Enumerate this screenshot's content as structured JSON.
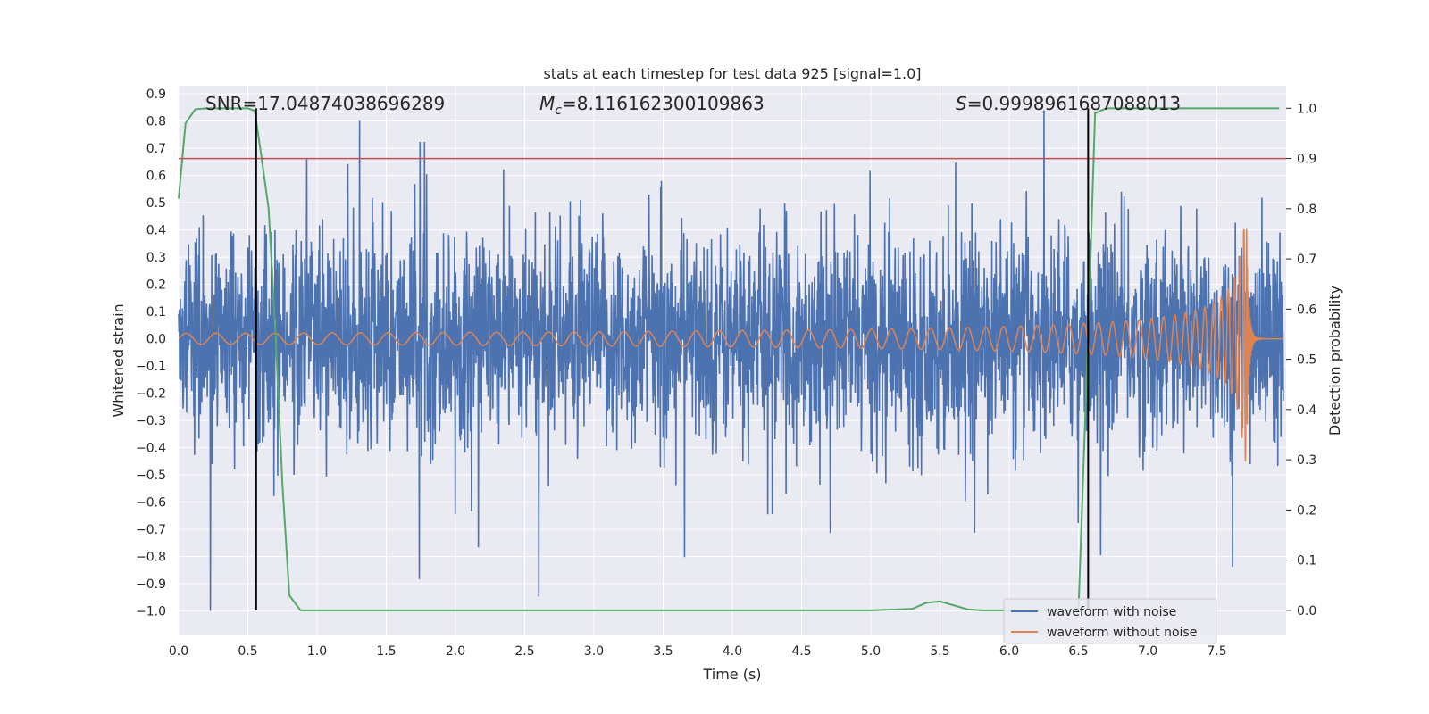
{
  "chart_data": {
    "type": "line",
    "title": "stats at each timestep for test data 925 [signal=1.0]",
    "xlabel": "Time (s)",
    "ylabel": "Whitened strain",
    "y2label": "Detection probability",
    "xlim": [
      0.0,
      8.0
    ],
    "ylim": [
      -1.09,
      0.93
    ],
    "y2lim": [
      -0.05,
      1.045
    ],
    "xticks": [
      "0.0",
      "0.5",
      "1.0",
      "1.5",
      "2.0",
      "2.5",
      "3.0",
      "3.5",
      "4.0",
      "4.5",
      "5.0",
      "5.5",
      "6.0",
      "6.5",
      "7.0",
      "7.5"
    ],
    "yticks": [
      "0.9",
      "0.8",
      "0.7",
      "0.6",
      "0.5",
      "0.4",
      "0.3",
      "0.2",
      "0.1",
      "0.0",
      "−0.1",
      "−0.2",
      "−0.3",
      "−0.4",
      "−0.5",
      "−0.6",
      "−0.7",
      "−0.8",
      "−0.9",
      "−1.0"
    ],
    "y2ticks": [
      "1.0",
      "0.9",
      "0.8",
      "0.7",
      "0.6",
      "0.5",
      "0.4",
      "0.3",
      "0.2",
      "0.1",
      "0.0"
    ],
    "grid": true,
    "legend_position": "lower-right",
    "annotations": {
      "snr_label": "SNR=17.04874038696289",
      "mc_symbol": "M",
      "mc_subscript": "c",
      "mc_value": "=8.116162300109863",
      "s_symbol": "S",
      "s_value": "=0.9998961687088013"
    },
    "threshold": {
      "value": 0.9,
      "axis": "y2",
      "color": "#c44e52"
    },
    "vertical_markers": {
      "x": [
        0.56,
        6.57
      ],
      "color": "#000000"
    },
    "series": [
      {
        "name": "waveform with noise",
        "color": "#4c72b0",
        "axis": "y",
        "description_envelope": {
          "core_amplitude": 0.32,
          "peak_max": 0.84,
          "trough_min": -1.0
        }
      },
      {
        "name": "waveform without noise",
        "color": "#dd8452",
        "axis": "y",
        "chirp": {
          "start_amplitude": 0.02,
          "merger_time": 7.72,
          "peak_amplitude": 0.4,
          "trough_amplitude": -0.52
        }
      },
      {
        "name": "",
        "color": "#55a868",
        "axis": "y2",
        "x": [
          0.0,
          0.05,
          0.12,
          0.2,
          0.3,
          0.4,
          0.5,
          0.55,
          0.6,
          0.65,
          0.7,
          0.75,
          0.8,
          0.88,
          1.0,
          2.0,
          3.0,
          4.0,
          5.0,
          5.3,
          5.4,
          5.5,
          5.6,
          5.7,
          5.8,
          6.0,
          6.3,
          6.5,
          6.57,
          6.62,
          6.7,
          6.8,
          7.0,
          7.5,
          7.95
        ],
        "values": [
          0.82,
          0.97,
          0.998,
          1.0,
          1.0,
          1.0,
          1.0,
          0.995,
          0.9,
          0.8,
          0.55,
          0.25,
          0.03,
          0.0,
          0.0,
          0.0,
          0.0,
          0.0,
          0.0,
          0.003,
          0.015,
          0.018,
          0.01,
          0.002,
          0.0,
          0.0,
          0.0,
          0.0,
          0.55,
          0.99,
          1.0,
          1.0,
          1.0,
          1.0,
          1.0
        ]
      }
    ]
  }
}
